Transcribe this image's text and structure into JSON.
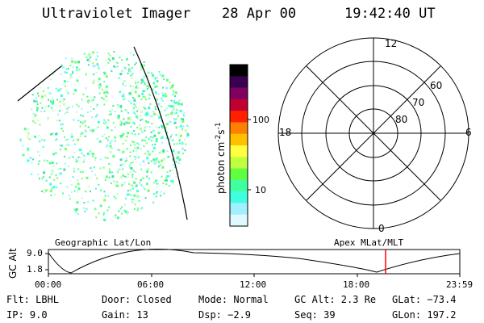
{
  "header": {
    "instrument": "Ultraviolet Imager",
    "date": "28 Apr 00",
    "time": "19:42:40 UT"
  },
  "colorbar": {
    "label_main": "photon cm",
    "label_exp1": "-2",
    "label_mid": "s",
    "label_exp2": "-1",
    "tick_100": "100",
    "tick_10": "10",
    "colors": [
      "#000000",
      "#3a0050",
      "#800060",
      "#c00030",
      "#ff2000",
      "#ff8000",
      "#ffc000",
      "#ffff40",
      "#c0ff40",
      "#60ff40",
      "#40ffa0",
      "#40ffe0",
      "#a0f0ff",
      "#e0f8ff"
    ]
  },
  "polar_plot": {
    "labels": {
      "top": "12",
      "bottom": "0",
      "left": "18",
      "right": "6",
      "lat60": "60",
      "lat70": "70",
      "lat80": "80"
    }
  },
  "orbit_panel": {
    "left_label": "Geographic Lat/Lon",
    "right_label": "Apex MLat/MLT",
    "y_axis_label": "GC Alt",
    "y_tick_top": "9.0",
    "y_tick_bottom": "1.8",
    "x_ticks": [
      "00:00",
      "06:00",
      "12:00",
      "18:00",
      "23:59"
    ]
  },
  "info_row1": {
    "flt": "Flt: LBHL",
    "door": "Door: Closed",
    "mode": "Mode: Normal",
    "gcalt": "GC Alt: 2.3 Re",
    "glat": "GLat: −73.4"
  },
  "info_row2": {
    "ip": "IP: 9.0",
    "gain": "Gain: 13",
    "dsp": "Dsp: −2.9",
    "seq": "Seq: 39",
    "glon": "GLon: 197.2"
  }
}
